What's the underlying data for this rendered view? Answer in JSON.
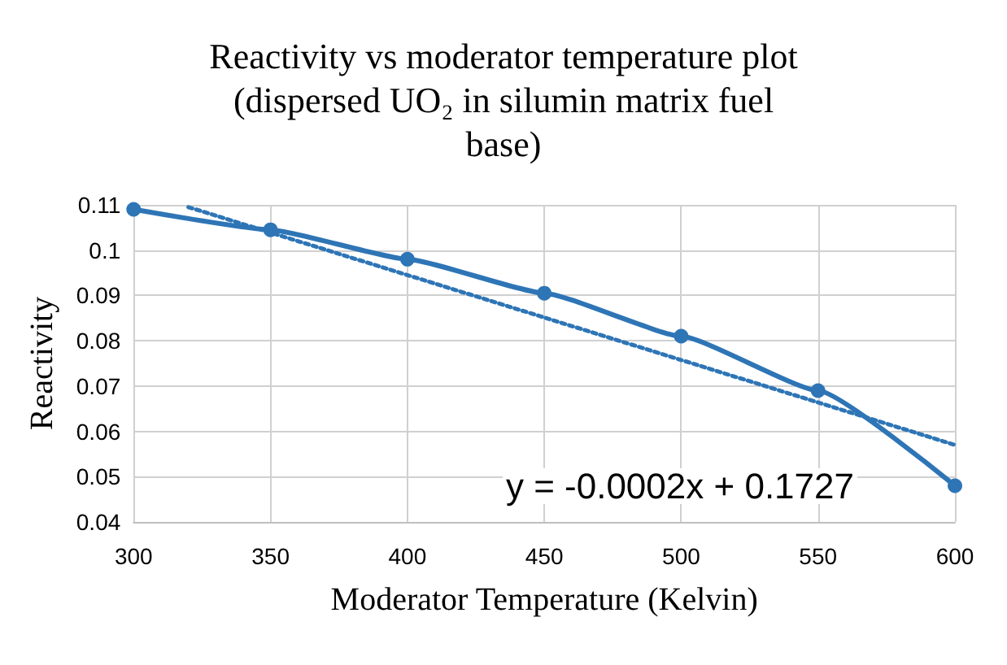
{
  "chart_data": {
    "type": "line",
    "title": "Reactivity vs moderator temperature plot\n(dispersed UO₂ in silumin matrix fuel\nbase)",
    "xlabel": "Moderator Temperature (Kelvin)",
    "ylabel": "Reactivity",
    "series": [
      {
        "color": "#2e75b6",
        "x": [
          300,
          350,
          400,
          450,
          500,
          550,
          600
        ],
        "values": [
          0.109,
          0.1045,
          0.098,
          0.0905,
          0.081,
          0.069,
          0.048
        ],
        "marker": "circle",
        "line_style": "solid"
      },
      {
        "type": "line",
        "color": "#2e75b6",
        "x": [
          320,
          600
        ],
        "values": [
          0.1095,
          0.057
        ],
        "marker": "none",
        "line_style": "dotted"
      }
    ],
    "xlim": [
      300,
      600
    ],
    "xticks": [
      300,
      350,
      400,
      450,
      500,
      550,
      600
    ],
    "ylim": [
      0.04,
      0.11
    ],
    "yticks": [
      0.04,
      0.05,
      0.06,
      0.07,
      0.08,
      0.09,
      0.1,
      0.11
    ],
    "grid": true,
    "annotations": [
      "y = -0.0002x + 0.1727"
    ]
  }
}
